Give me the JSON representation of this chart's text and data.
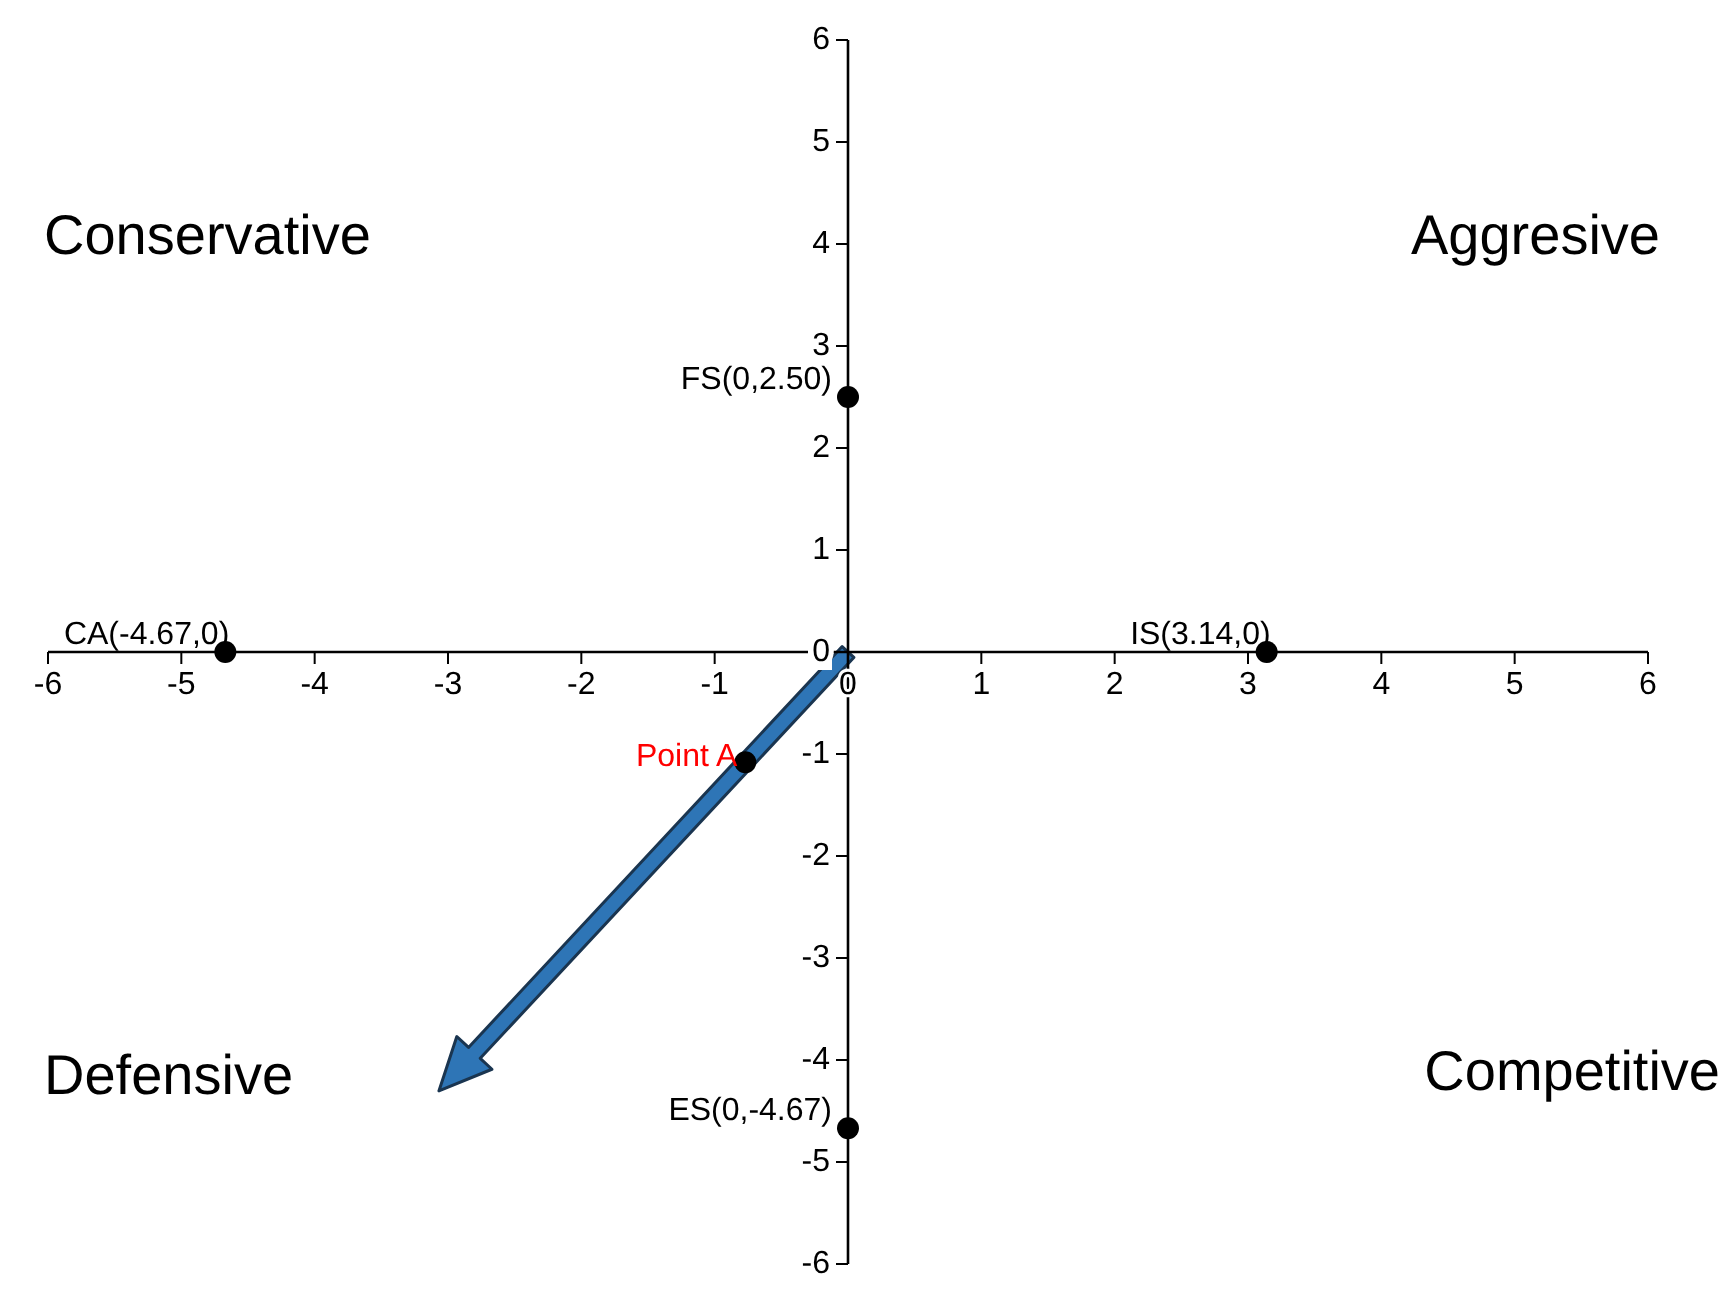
{
  "chart_data": {
    "type": "scatter",
    "xlim": [
      -6,
      6
    ],
    "ylim": [
      -6,
      6
    ],
    "xticks": [
      -6,
      -5,
      -4,
      -3,
      -2,
      -1,
      0,
      1,
      2,
      3,
      4,
      5,
      6
    ],
    "yticks": [
      -6,
      -5,
      -4,
      -3,
      -2,
      -1,
      0,
      1,
      2,
      3,
      4,
      5,
      6
    ],
    "grid": false,
    "marker": "circle",
    "series": [
      {
        "color": "#000000",
        "x": [
          0,
          -4.67,
          3.14,
          0
        ],
        "values": [
          2.5,
          0,
          0,
          -4.67
        ]
      },
      {
        "name": "Point A",
        "color": "#000000",
        "x": [
          -0.77
        ],
        "values": [
          -1.08
        ]
      }
    ],
    "annotations": [
      "Conservative",
      "Aggresive",
      "Defensive",
      "Competitive",
      {
        "text": "FS(0,2.50)",
        "x": 0,
        "y": 2.5
      },
      {
        "text": "CA(-4.67,0)",
        "x": -4.67,
        "y": 0
      },
      {
        "text": "IS(3.14,0)",
        "x": 3.14,
        "y": 0
      },
      {
        "text": "ES(0,-4.67)",
        "x": 0,
        "y": -4.67
      }
    ]
  }
}
